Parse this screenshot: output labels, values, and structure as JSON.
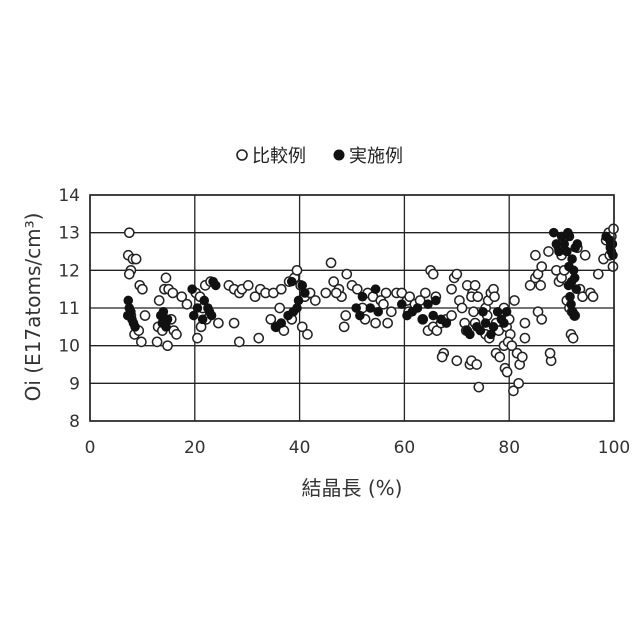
{
  "chart_data": {
    "type": "scatter",
    "title": "",
    "xlabel": "結晶長 (%)",
    "ylabel": "Oi (E17atoms/cm³)",
    "xlim": [
      0,
      100
    ],
    "ylim": [
      8,
      14
    ],
    "xticks": [
      "0",
      "20",
      "40",
      "60",
      "80",
      "100"
    ],
    "yticks": [
      "8",
      "9",
      "10",
      "11",
      "12",
      "13",
      "14"
    ],
    "grid": true,
    "legend": "top-center",
    "series": [
      {
        "name": "比較例",
        "marker": "open-circle",
        "color": "#222222",
        "points": [
          [
            7.5,
            13.0
          ],
          [
            7.3,
            12.4
          ],
          [
            7.8,
            12.0
          ],
          [
            8.2,
            12.3
          ],
          [
            8.8,
            12.3
          ],
          [
            7.5,
            11.9
          ],
          [
            9.5,
            11.6
          ],
          [
            10,
            11.5
          ],
          [
            7.8,
            10.8
          ],
          [
            8.5,
            10.3
          ],
          [
            9.3,
            10.4
          ],
          [
            9.8,
            10.1
          ],
          [
            10.5,
            10.8
          ],
          [
            13.2,
            11.2
          ],
          [
            14.2,
            11.5
          ],
          [
            14.5,
            11.8
          ],
          [
            15,
            11.5
          ],
          [
            15.8,
            11.4
          ],
          [
            13.0,
            10.5
          ],
          [
            13.8,
            10.4
          ],
          [
            12.8,
            10.1
          ],
          [
            14.8,
            10.0
          ],
          [
            16,
            10.4
          ],
          [
            16.5,
            10.3
          ],
          [
            15.5,
            10.7
          ],
          [
            17.5,
            11.3
          ],
          [
            18.5,
            11.1
          ],
          [
            20.2,
            11.4
          ],
          [
            21,
            11.3
          ],
          [
            21.5,
            11.0
          ],
          [
            22,
            11.6
          ],
          [
            23,
            11.7
          ],
          [
            21.2,
            10.5
          ],
          [
            22.2,
            10.7
          ],
          [
            20.5,
            10.2
          ],
          [
            24.5,
            10.6
          ],
          [
            26.5,
            11.6
          ],
          [
            27.5,
            11.5
          ],
          [
            28.5,
            11.4
          ],
          [
            29,
            11.5
          ],
          [
            30.2,
            11.6
          ],
          [
            27.5,
            10.6
          ],
          [
            28.5,
            10.1
          ],
          [
            31.5,
            11.3
          ],
          [
            32.5,
            11.5
          ],
          [
            33.5,
            11.4
          ],
          [
            35,
            11.4
          ],
          [
            36.5,
            11.5
          ],
          [
            32.2,
            10.2
          ],
          [
            36.2,
            11.0
          ],
          [
            34.5,
            10.7
          ],
          [
            35.5,
            10.5
          ],
          [
            37,
            10.4
          ],
          [
            38,
            11.7
          ],
          [
            39,
            11.8
          ],
          [
            39.5,
            12.0
          ],
          [
            40.2,
            11.6
          ],
          [
            41,
            11.3
          ],
          [
            42,
            11.4
          ],
          [
            43,
            11.2
          ],
          [
            41.5,
            10.3
          ],
          [
            40.5,
            10.5
          ],
          [
            38.5,
            10.7
          ],
          [
            45,
            11.4
          ],
          [
            46,
            12.2
          ],
          [
            46.5,
            11.7
          ],
          [
            47.5,
            11.5
          ],
          [
            48,
            11.3
          ],
          [
            47,
            11.4
          ],
          [
            49,
            11.9
          ],
          [
            50,
            11.6
          ],
          [
            51,
            11.5
          ],
          [
            48.5,
            10.5
          ],
          [
            48.8,
            10.8
          ],
          [
            52,
            11.0
          ],
          [
            53,
            11.4
          ],
          [
            54,
            11.3
          ],
          [
            55.5,
            11.2
          ],
          [
            56.5,
            11.4
          ],
          [
            56,
            11.1
          ],
          [
            52.5,
            10.7
          ],
          [
            54.5,
            10.6
          ],
          [
            56.8,
            10.6
          ],
          [
            57.5,
            10.9
          ],
          [
            58.5,
            11.4
          ],
          [
            59.5,
            11.4
          ],
          [
            60.5,
            11.2
          ],
          [
            61,
            11.3
          ],
          [
            62,
            11.1
          ],
          [
            63,
            11.2
          ],
          [
            60.8,
            10.9
          ],
          [
            63.5,
            10.7
          ],
          [
            64,
            11.4
          ],
          [
            65,
            12.0
          ],
          [
            65.5,
            11.9
          ],
          [
            66,
            11.3
          ],
          [
            64.5,
            10.4
          ],
          [
            65.5,
            10.5
          ],
          [
            66.2,
            10.4
          ],
          [
            67,
            10.6
          ],
          [
            67.5,
            9.8
          ],
          [
            67.2,
            9.7
          ],
          [
            69.5,
            11.8
          ],
          [
            70,
            11.9
          ],
          [
            69,
            11.5
          ],
          [
            70.5,
            11.2
          ],
          [
            71,
            11.0
          ],
          [
            68,
            10.7
          ],
          [
            69,
            10.8
          ],
          [
            71.5,
            10.6
          ],
          [
            71.8,
            10.4
          ],
          [
            70,
            9.6
          ],
          [
            72.5,
            9.5
          ],
          [
            72,
            11.6
          ],
          [
            73,
            11.4
          ],
          [
            73.5,
            11.6
          ],
          [
            72.8,
            11.3
          ],
          [
            74,
            11.3
          ],
          [
            73.2,
            10.9
          ],
          [
            73.5,
            10.6
          ],
          [
            72.8,
            9.6
          ],
          [
            73.8,
            9.5
          ],
          [
            74.2,
            8.9
          ],
          [
            75.5,
            11.0
          ],
          [
            76,
            11.2
          ],
          [
            76.5,
            11.4
          ],
          [
            77,
            11.5
          ],
          [
            77.2,
            11.3
          ],
          [
            75.8,
            10.8
          ],
          [
            75.5,
            10.3
          ],
          [
            76.2,
            10.2
          ],
          [
            77.5,
            10.6
          ],
          [
            78,
            10.4
          ],
          [
            77.5,
            9.8
          ],
          [
            78.2,
            9.7
          ],
          [
            79.0,
            11.0
          ],
          [
            79.5,
            10.5
          ],
          [
            80,
            10.7
          ],
          [
            80.2,
            10.3
          ],
          [
            79,
            10.0
          ],
          [
            79.8,
            10.1
          ],
          [
            79.2,
            9.4
          ],
          [
            79.6,
            9.3
          ],
          [
            80.5,
            10.0
          ],
          [
            81,
            11.2
          ],
          [
            81.5,
            9.8
          ],
          [
            81.8,
            9.0
          ],
          [
            80.8,
            8.8
          ],
          [
            82,
            9.5
          ],
          [
            82.5,
            9.7
          ],
          [
            83,
            10.2
          ],
          [
            83,
            10.6
          ],
          [
            84,
            11.6
          ],
          [
            85,
            11.8
          ],
          [
            85.5,
            11.9
          ],
          [
            86,
            11.6
          ],
          [
            86.2,
            12.1
          ],
          [
            85,
            12.4
          ],
          [
            85.5,
            10.9
          ],
          [
            86.2,
            10.7
          ],
          [
            87.5,
            12.5
          ],
          [
            88,
            9.6
          ],
          [
            87.8,
            9.8
          ],
          [
            89,
            12.0
          ],
          [
            89.5,
            11.7
          ],
          [
            90,
            11.8
          ],
          [
            90.5,
            12.0
          ],
          [
            90,
            12.4
          ],
          [
            89.5,
            12.6
          ],
          [
            91,
            11.2
          ],
          [
            91.5,
            11.0
          ],
          [
            92,
            10.9
          ],
          [
            92.5,
            10.8
          ],
          [
            91.8,
            10.3
          ],
          [
            92.2,
            10.2
          ],
          [
            93.5,
            11.5
          ],
          [
            94,
            11.3
          ],
          [
            94.5,
            12.4
          ],
          [
            93,
            12.6
          ],
          [
            95.5,
            11.4
          ],
          [
            96,
            11.3
          ],
          [
            97,
            11.9
          ],
          [
            98,
            12.3
          ],
          [
            98.5,
            12.8
          ],
          [
            99,
            13.0
          ],
          [
            99.5,
            12.7
          ],
          [
            99.8,
            12.1
          ],
          [
            99.5,
            12.9
          ],
          [
            99.9,
            13.1
          ],
          [
            99.2,
            12.4
          ]
        ]
      },
      {
        "name": "実施例",
        "marker": "filled-circle",
        "color": "#111111",
        "points": [
          [
            7.3,
            11.2
          ],
          [
            7.5,
            11.0
          ],
          [
            7.8,
            10.9
          ],
          [
            8.0,
            10.7
          ],
          [
            8.3,
            10.6
          ],
          [
            8.6,
            10.5
          ],
          [
            7.2,
            10.8
          ],
          [
            13.5,
            10.8
          ],
          [
            14,
            10.9
          ],
          [
            14.8,
            10.7
          ],
          [
            13.8,
            10.6
          ],
          [
            14.5,
            10.5
          ],
          [
            19.5,
            11.5
          ],
          [
            19.8,
            10.8
          ],
          [
            20.5,
            11.0
          ],
          [
            21.8,
            11.2
          ],
          [
            22.5,
            11.0
          ],
          [
            22.8,
            10.9
          ],
          [
            23.2,
            10.8
          ],
          [
            23.5,
            11.7
          ],
          [
            24,
            11.6
          ],
          [
            21.5,
            10.7
          ],
          [
            35.5,
            10.5
          ],
          [
            36.5,
            10.6
          ],
          [
            37.8,
            10.8
          ],
          [
            38.8,
            10.9
          ],
          [
            39.5,
            11.0
          ],
          [
            39.8,
            11.2
          ],
          [
            38.5,
            11.7
          ],
          [
            40.5,
            11.6
          ],
          [
            41,
            11.4
          ],
          [
            50.8,
            11.0
          ],
          [
            51.5,
            10.8
          ],
          [
            52,
            11.3
          ],
          [
            53.5,
            11.0
          ],
          [
            54.5,
            11.5
          ],
          [
            55,
            10.9
          ],
          [
            59.5,
            11.1
          ],
          [
            60.5,
            10.8
          ],
          [
            61.5,
            10.9
          ],
          [
            62.5,
            11.0
          ],
          [
            63.5,
            10.7
          ],
          [
            64.5,
            11.1
          ],
          [
            65.5,
            10.8
          ],
          [
            66,
            11.2
          ],
          [
            67,
            10.7
          ],
          [
            68,
            10.6
          ],
          [
            72,
            10.4
          ],
          [
            72.5,
            10.3
          ],
          [
            73.8,
            10.5
          ],
          [
            74.5,
            10.4
          ],
          [
            75,
            10.9
          ],
          [
            75.5,
            10.6
          ],
          [
            76.5,
            10.3
          ],
          [
            77,
            10.5
          ],
          [
            77.8,
            10.9
          ],
          [
            78.5,
            10.7
          ],
          [
            79,
            10.6
          ],
          [
            79.5,
            10.9
          ],
          [
            88.5,
            13.0
          ],
          [
            89,
            12.7
          ],
          [
            89.5,
            12.5
          ],
          [
            90,
            12.9
          ],
          [
            90.5,
            12.7
          ],
          [
            91,
            12.5
          ],
          [
            91.2,
            13.0
          ],
          [
            91.5,
            12.9
          ],
          [
            92,
            12.3
          ],
          [
            92.3,
            12.0
          ],
          [
            92.5,
            11.8
          ],
          [
            92.8,
            11.5
          ],
          [
            91.3,
            11.6
          ],
          [
            91.6,
            11.3
          ],
          [
            91.8,
            11.1
          ],
          [
            92.1,
            10.9
          ],
          [
            92.4,
            10.8
          ],
          [
            91.4,
            12.1
          ],
          [
            92.6,
            12.6
          ],
          [
            93,
            12.7
          ],
          [
            91.9,
            11.7
          ],
          [
            98.5,
            12.9
          ],
          [
            99.2,
            12.8
          ],
          [
            99.5,
            12.5
          ],
          [
            99.7,
            12.7
          ],
          [
            99.8,
            12.4
          ],
          [
            99.3,
            12.6
          ]
        ]
      }
    ]
  }
}
